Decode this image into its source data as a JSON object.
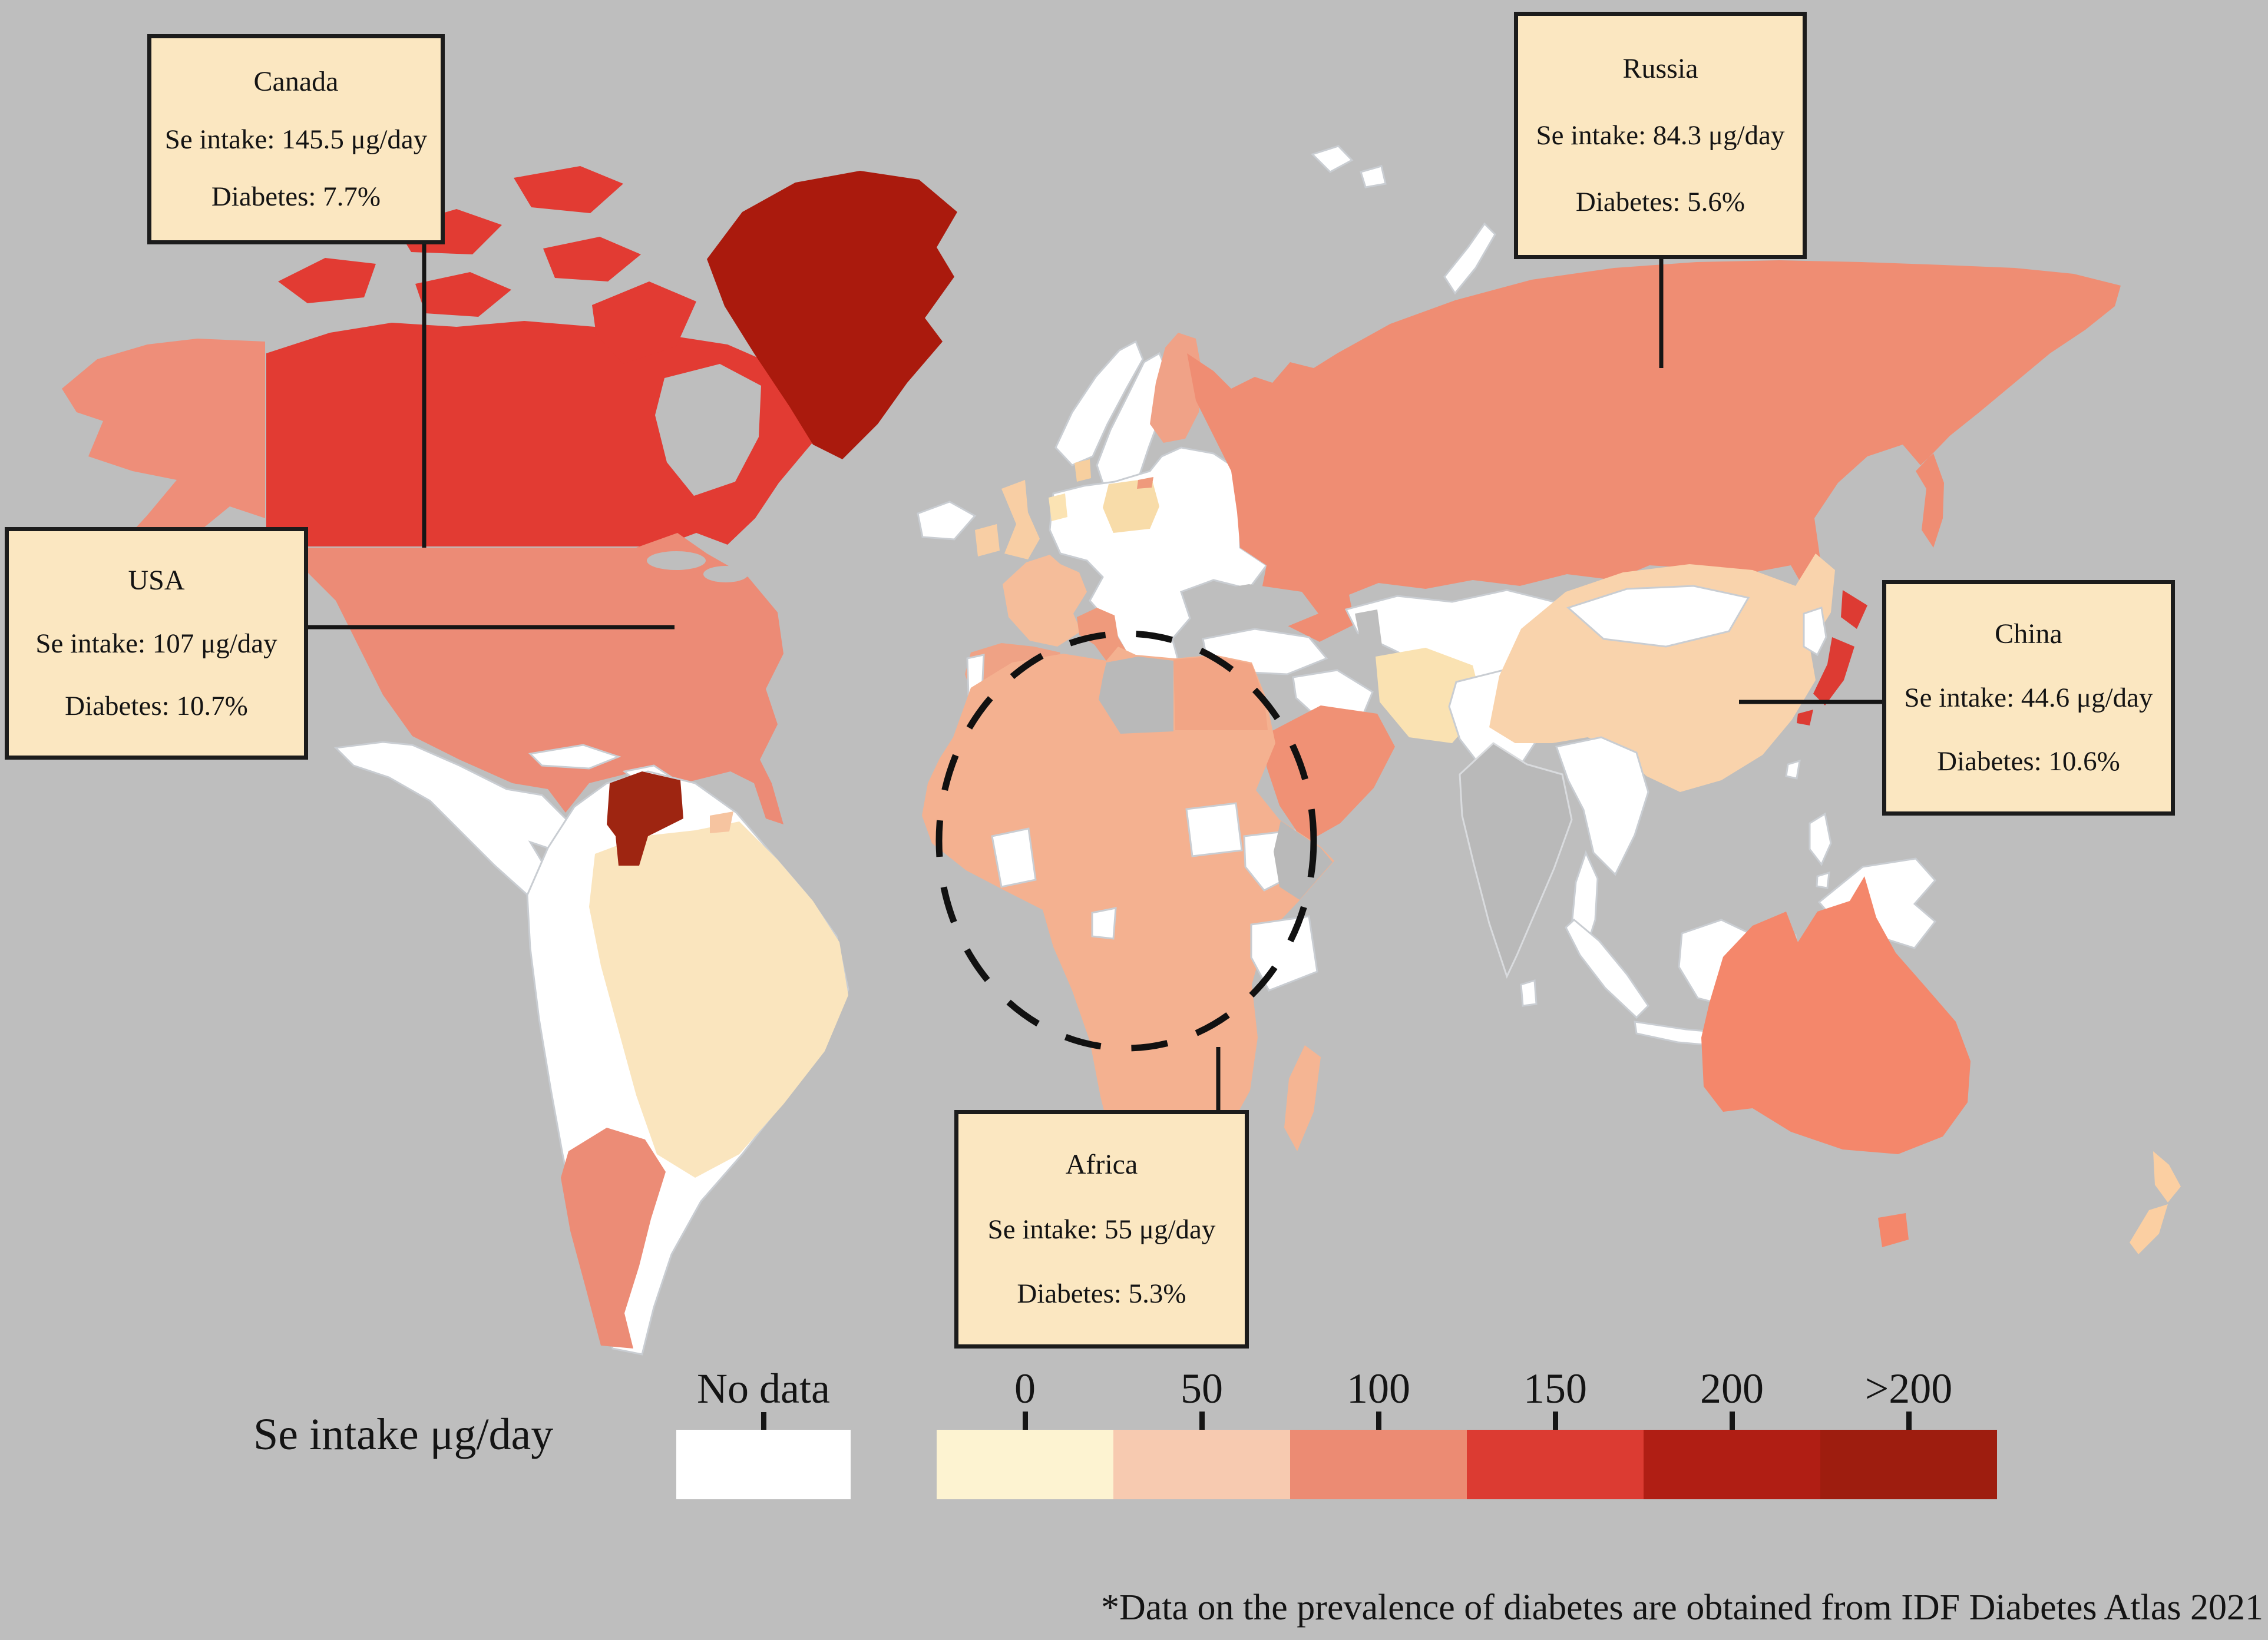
{
  "figure": {
    "background_color": "#bebebe",
    "footnote": "*Data on the prevalence of diabetes are obtained from IDF Diabetes Atlas 2021"
  },
  "callouts": [
    {
      "id": "canada",
      "title": "Canada",
      "line1": "Se intake: 145.5 μg/day",
      "line2": "Diabetes: 7.7%"
    },
    {
      "id": "usa",
      "title": "USA",
      "line1": "Se intake: 107 μg/day",
      "line2": "Diabetes: 10.7%"
    },
    {
      "id": "russia",
      "title": "Russia",
      "line1": "Se intake: 84.3 μg/day",
      "line2": "Diabetes: 5.6%"
    },
    {
      "id": "china",
      "title": "China",
      "line1": "Se intake: 44.6 μg/day",
      "line2": "Diabetes: 10.6%"
    },
    {
      "id": "africa",
      "title": "Africa",
      "line1": "Se intake: 55 μg/day",
      "line2": "Diabetes: 5.3%"
    }
  ],
  "legend": {
    "label": "Se intake μg/day",
    "no_data_label": "No data",
    "no_data_color": "#ffffff",
    "scale": [
      {
        "label": "0",
        "color": "#fdf3d1"
      },
      {
        "label": "50",
        "color": "#f7cab0"
      },
      {
        "label": "100",
        "color": "#ec8b73"
      },
      {
        "label": "150",
        "color": "#dc3b32"
      },
      {
        "label": "200",
        "color": "#b01e14"
      },
      {
        "label": ">200",
        "color": "#9e1d0f"
      }
    ]
  },
  "map": {
    "ocean_color": "#bebebe",
    "callout_box_color": "#fbe7c1",
    "connector_color": "#151515",
    "region_colors": {
      "canada": "#e23b33",
      "canada-islands": "#e23b33",
      "alaska": "#ee8e79",
      "greenland": "#aa1a0d",
      "usa": "#ec8b76",
      "mexico-central-america": "#ffffff",
      "cuba": "#ffffff",
      "hispaniola": "#ffffff",
      "south-america": "#ffffff",
      "venezuela": "#9e2511",
      "brazil": "#fae5be",
      "argentina": "#ec8c76",
      "guiana": "#f6c4a0",
      "iceland": "#ffffff",
      "uk": "#f8cea4",
      "ireland": "#f8cea4",
      "norway": "#ffffff",
      "sweden": "#ffffff",
      "finland": "#f0a287",
      "denmark": "#f7cf9f",
      "benelux": "#fbe3b3",
      "europe": "#ffffff",
      "poland": "#f8dca9",
      "kaliningrad": "#ef9a7c",
      "france": "#f5bd9a",
      "iberia": "#efa285",
      "portugal": "#ffffff",
      "italy": "#ef9a7c",
      "sicily": "#ef9a7c",
      "russia": "#ef8d73",
      "novaya-zemlya": "#ffffff",
      "svalbard": "#ffffff",
      "central-asia": "#ffffff",
      "turkey": "#ffffff",
      "iraq-syria": "#ffffff",
      "iran": "#fae2b2",
      "saudi": "#f09175",
      "afghanistan-pakistan": "#ffffff",
      "india": "#b9b9b9",
      "sri-lanka": "#ffffff",
      "china": "#f9d3ac",
      "mongolia": "#ffffff",
      "korea": "#ffffff",
      "japan": "#dd3b33",
      "taiwan": "#ffffff",
      "indochina": "#ffffff",
      "malay": "#ffffff",
      "sumatra": "#ffffff",
      "java": "#ffffff",
      "borneo": "#ffffff",
      "sulawesi": "#ffffff",
      "philippines": "#ffffff",
      "new-guinea": "#ffffff",
      "australia": "#f4876b",
      "tasmania": "#f4876b",
      "new-zealand-north": "#fbcfa2",
      "new-zealand-south": "#fbcfa2",
      "africa": "#f4b190",
      "egypt": "#f2a585",
      "libya": "#b9b9b9",
      "somalia": "#b9b9b9",
      "ghana": "#ffffff",
      "south-sudan": "#ffffff",
      "ethiopia": "#ffffff",
      "tanzania": "#ffffff",
      "gabon": "#ffffff",
      "madagascar": "#f5b593",
      "hudson-bay": "#bebebe",
      "great-lake-1": "#bebebe",
      "great-lake-2": "#bebebe",
      "black-sea": "#bebebe",
      "caspian-sea": "#bebebe"
    }
  },
  "chart_data": {
    "type": "choropleth_map",
    "variable": "Se intake μg/day",
    "legend_position": "bottom",
    "legend_classes": [
      {
        "label": "No data",
        "color": "#ffffff"
      },
      {
        "label": "0",
        "color": "#fdf3d1"
      },
      {
        "label": "50",
        "color": "#f7cab0"
      },
      {
        "label": "100",
        "color": "#ec8b73"
      },
      {
        "label": "150",
        "color": "#dc3b32"
      },
      {
        "label": "200",
        "color": "#b01e14"
      },
      {
        "label": ">200",
        "color": "#9e1d0f"
      }
    ],
    "annotations": [
      {
        "region": "Canada",
        "se_intake_ug_day": 145.5,
        "diabetes_prevalence_pct": 7.7
      },
      {
        "region": "USA",
        "se_intake_ug_day": 107,
        "diabetes_prevalence_pct": 10.7
      },
      {
        "region": "Russia",
        "se_intake_ug_day": 84.3,
        "diabetes_prevalence_pct": 5.6
      },
      {
        "region": "China",
        "se_intake_ug_day": 44.6,
        "diabetes_prevalence_pct": 10.6
      },
      {
        "region": "Africa",
        "se_intake_ug_day": 55,
        "diabetes_prevalence_pct": 5.3
      }
    ],
    "highlighted_area": "Africa (dashed ellipse)",
    "source_note": "*Data on the prevalence of diabetes are obtained from IDF Diabetes Atlas 2021"
  }
}
